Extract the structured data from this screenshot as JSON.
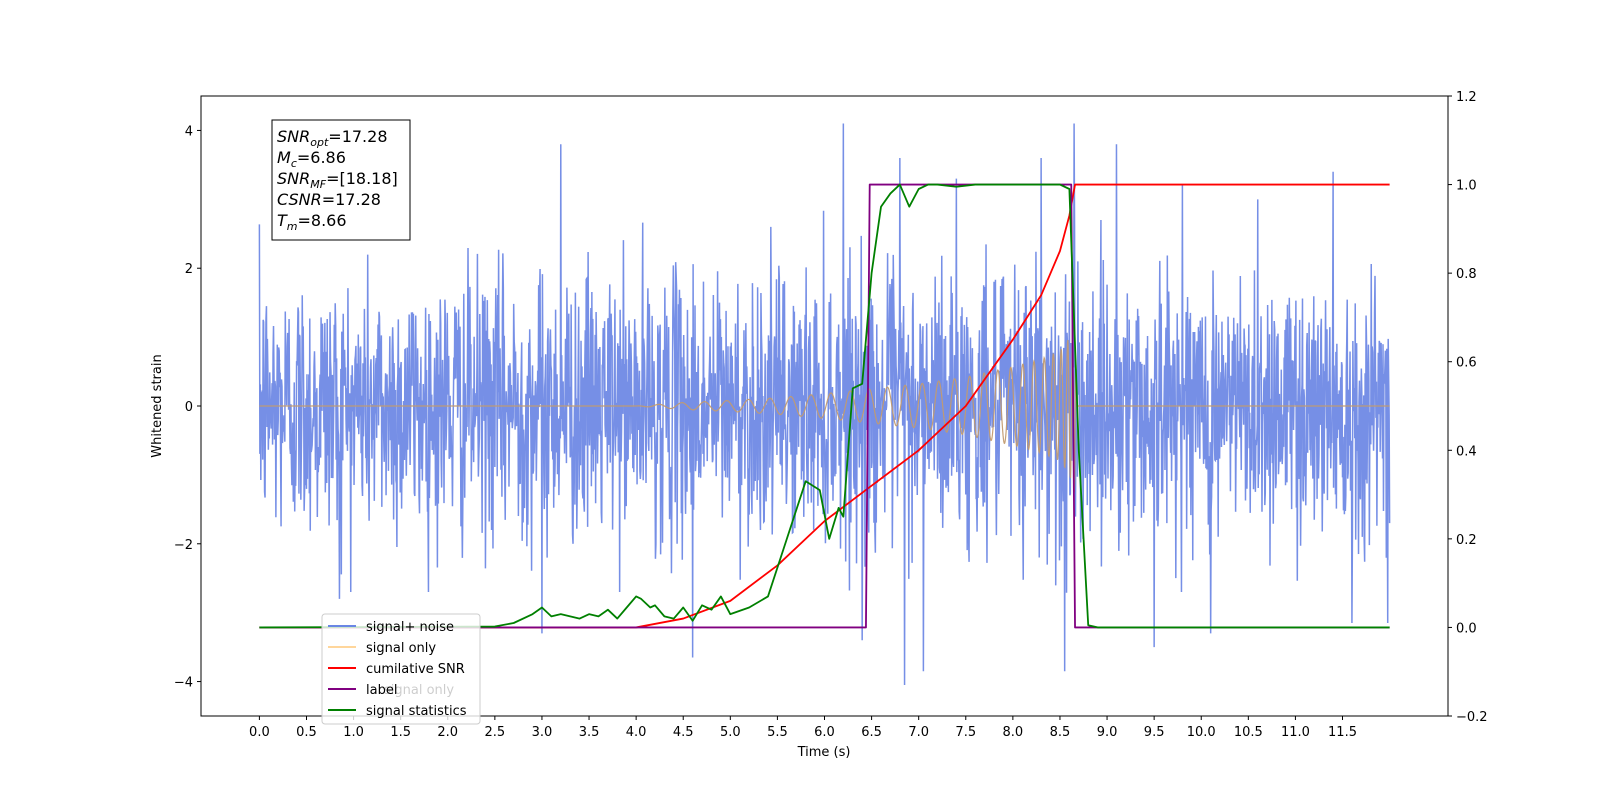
{
  "chart_data": {
    "type": "line",
    "xlabel": "Time (s)",
    "ylabel_left": "Whitened strain",
    "ylabel_right": "",
    "xlim": [
      -0.62,
      12.62
    ],
    "ylim_left": [
      -4.5,
      4.5
    ],
    "ylim_right": [
      -0.2,
      1.2
    ],
    "x_tick_values": [
      0.0,
      0.5,
      1.0,
      1.5,
      2.0,
      2.5,
      3.0,
      3.5,
      4.0,
      4.5,
      5.0,
      5.5,
      6.0,
      6.5,
      7.0,
      7.5,
      8.0,
      8.5,
      9.0,
      9.5,
      10.0,
      10.5,
      11.0,
      11.5
    ],
    "x_tick_labels": [
      "0.0",
      "0.5",
      "1.0",
      "1.5",
      "2.0",
      "2.5",
      "3.0",
      "3.5",
      "4.0",
      "4.5",
      "5.0",
      "5.5",
      "6.0",
      "6.5",
      "7.0",
      "7.5",
      "8.0",
      "8.5",
      "9.0",
      "9.5",
      "10.0",
      "10.5",
      "11.0",
      "11.5"
    ],
    "y_left_tick_values": [
      -4,
      -2,
      0,
      2,
      4
    ],
    "y_left_tick_labels": [
      "−4",
      "−2",
      "0",
      "2",
      "4"
    ],
    "y_right_tick_values": [
      -0.2,
      0.0,
      0.2,
      0.4,
      0.6,
      0.8,
      1.0,
      1.2
    ],
    "y_right_tick_labels": [
      "−0.2",
      "0.0",
      "0.2",
      "0.4",
      "0.6",
      "0.8",
      "1.0",
      "1.2"
    ],
    "grid": false,
    "legend_position": "lower-left",
    "series": [
      {
        "name": "signal+ noise",
        "axis": "left",
        "color": "#6a86e4",
        "kind": "noise",
        "x_range": [
          0.0,
          12.0
        ],
        "typical_range": [
          -2.7,
          2.7
        ],
        "peaks_x": [
          3.0,
          3.2,
          6.2,
          6.8,
          7.4,
          8.3,
          8.65,
          9.1,
          9.8,
          10.6,
          11.4
        ],
        "peaks_y": [
          3.8,
          3.8,
          4.1,
          3.6,
          3.3,
          3.6,
          4.1,
          3.8,
          3.2,
          3.0,
          3.4
        ],
        "troughs_x": [
          0.85,
          3.0,
          4.6,
          6.4,
          6.85,
          7.05,
          8.55,
          9.5,
          10.1,
          11.6,
          11.98
        ],
        "troughs_y": [
          -2.8,
          -3.3,
          -3.65,
          -3.4,
          -4.05,
          -3.85,
          -3.85,
          -3.5,
          -3.3,
          -3.15,
          -3.15
        ]
      },
      {
        "name": "signal only",
        "axis": "left",
        "color": "#c29b70",
        "kind": "chirp",
        "merger_time": 8.66,
        "envelope_x": [
          0.0,
          4.0,
          4.5,
          5.0,
          5.5,
          6.0,
          6.5,
          7.0,
          7.5,
          8.0,
          8.3,
          8.5,
          8.6,
          8.66,
          8.68,
          12.0
        ],
        "envelope_y": [
          0.0,
          0.0,
          0.05,
          0.08,
          0.12,
          0.18,
          0.25,
          0.32,
          0.42,
          0.57,
          0.68,
          0.8,
          1.0,
          1.3,
          0.0,
          0.0
        ]
      },
      {
        "name": "cumilative SNR",
        "axis": "right",
        "color": "#ff0000",
        "x": [
          0.0,
          4.0,
          4.5,
          5.0,
          5.5,
          6.0,
          6.5,
          7.0,
          7.5,
          8.0,
          8.3,
          8.5,
          8.6,
          8.66,
          8.66,
          12.0
        ],
        "y": [
          0.0,
          0.0,
          0.02,
          0.06,
          0.14,
          0.24,
          0.32,
          0.4,
          0.5,
          0.65,
          0.75,
          0.85,
          0.93,
          1.0,
          1.0,
          1.0
        ]
      },
      {
        "name": "label",
        "axis": "right",
        "color": "#800080",
        "x": [
          0.0,
          6.44,
          6.48,
          8.62,
          8.66,
          12.0
        ],
        "y": [
          0.0,
          0.0,
          1.0,
          1.0,
          0.0,
          0.0
        ]
      },
      {
        "name": "signal statistics",
        "axis": "right",
        "color": "#008000",
        "x": [
          0.0,
          2.5,
          2.7,
          2.9,
          3.0,
          3.1,
          3.2,
          3.4,
          3.5,
          3.6,
          3.7,
          3.8,
          3.9,
          4.0,
          4.05,
          4.15,
          4.2,
          4.3,
          4.4,
          4.5,
          4.6,
          4.7,
          4.8,
          4.9,
          5.0,
          5.2,
          5.4,
          5.6,
          5.8,
          5.95,
          6.05,
          6.15,
          6.2,
          6.3,
          6.4,
          6.5,
          6.6,
          6.7,
          6.8,
          6.9,
          7.0,
          7.1,
          7.2,
          7.4,
          7.6,
          8.0,
          8.5,
          8.6,
          8.7,
          8.8,
          8.9,
          12.0
        ],
        "y": [
          0.0,
          0.002,
          0.01,
          0.03,
          0.045,
          0.025,
          0.03,
          0.02,
          0.03,
          0.025,
          0.04,
          0.02,
          0.045,
          0.07,
          0.065,
          0.045,
          0.05,
          0.025,
          0.02,
          0.045,
          0.015,
          0.05,
          0.04,
          0.07,
          0.03,
          0.045,
          0.07,
          0.2,
          0.33,
          0.31,
          0.2,
          0.27,
          0.25,
          0.54,
          0.55,
          0.8,
          0.95,
          0.98,
          1.0,
          0.95,
          0.99,
          1.0,
          1.0,
          0.995,
          1.0,
          1.0,
          1.0,
          0.99,
          0.4,
          0.005,
          0.0,
          0.0
        ]
      }
    ],
    "info_box": [
      {
        "main": "SNR",
        "sub": "opt",
        "value": "=17.28"
      },
      {
        "main": "M",
        "sub": "c",
        "value": "=6.86"
      },
      {
        "main": "SNR",
        "sub": "MF",
        "value": "=[18.18]"
      },
      {
        "main": "CSNR",
        "sub": "",
        "value": "=17.28"
      },
      {
        "main": "T",
        "sub": "m",
        "value": "=8.66"
      }
    ],
    "legend_overlap_text": "signal only"
  }
}
